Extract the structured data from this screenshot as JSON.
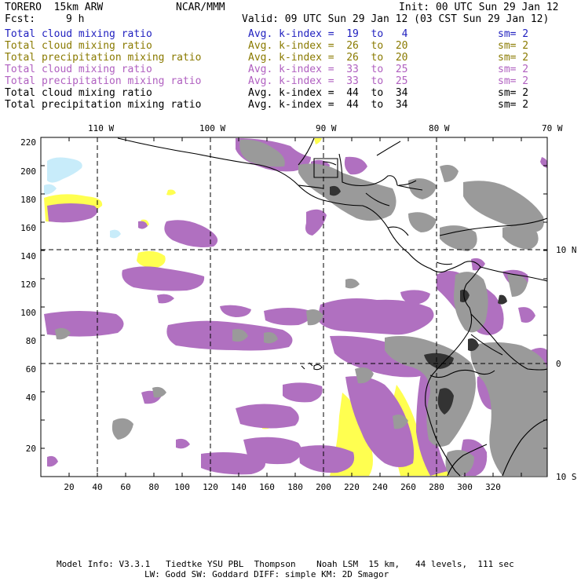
{
  "header": {
    "model": "TORERO  15km ARW",
    "org": "NCAR/MMM",
    "init": "Init: 00 UTC Sun 29 Jan 12",
    "fcst_label": "Fcst:",
    "fcst_value": "9 h",
    "valid": "Valid: 09 UTC Sun 29 Jan 12 (03 CST Sun 29 Jan 12)"
  },
  "legend": [
    {
      "field": "Total cloud mixing ratio",
      "index": "Avg. k-index =  19  to   4",
      "sm": "sm= 2",
      "color": "#1f1fbf"
    },
    {
      "field": "Total cloud mixing ratio",
      "index": "Avg. k-index =  26  to  20",
      "sm": "sm= 2",
      "color": "#8a7a00"
    },
    {
      "field": "Total precipitation mixing ratio",
      "index": "Avg. k-index =  26  to  20",
      "sm": "sm= 2",
      "color": "#8a7a00"
    },
    {
      "field": "Total cloud mixing ratio",
      "index": "Avg. k-index =  33  to  25",
      "sm": "sm= 2",
      "color": "#b060c0"
    },
    {
      "field": "Total precipitation mixing ratio",
      "index": "Avg. k-index =  33  to  25",
      "sm": "sm= 2",
      "color": "#b060c0"
    },
    {
      "field": "Total cloud mixing ratio",
      "index": "Avg. k-index =  44  to  34",
      "sm": "sm= 2",
      "color": "#000000"
    },
    {
      "field": "Total precipitation mixing ratio",
      "index": "Avg. k-index =  44  to  34",
      "sm": "sm= 2",
      "color": "#000000"
    }
  ],
  "map": {
    "lon_labels": [
      "110 W",
      "100 W",
      "90 W",
      "80 W",
      "70 W"
    ],
    "lat_labels": [
      "10 N",
      "0",
      "10 S"
    ],
    "x_ticks": [
      "20",
      "40",
      "60",
      "80",
      "100",
      "120",
      "140",
      "160",
      "180",
      "200",
      "220",
      "240",
      "260",
      "280",
      "300",
      "320"
    ],
    "y_ticks": [
      "220",
      "200",
      "180",
      "160",
      "140",
      "120",
      "100",
      "80",
      "60",
      "40",
      "20"
    ],
    "colors": {
      "light_blue": "#c8ecfa",
      "yellow": "#ffff50",
      "purple": "#b070c0",
      "gray": "#9a9a9a",
      "dark_gray": "#333333"
    }
  },
  "footer": {
    "line1": "Model Info: V3.3.1   Tiedtke YSU PBL  Thompson    Noah LSM  15 km,   44 levels,  111 sec",
    "line2": "LW: Godd SW: Goddard DIFF: simple KM: 2D Smagor"
  }
}
